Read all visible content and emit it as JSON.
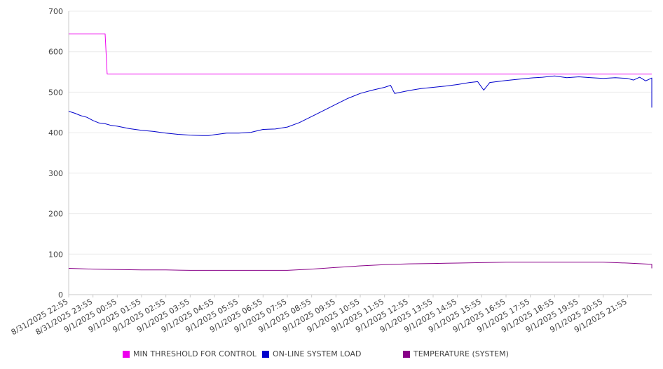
{
  "chart_data": {
    "type": "line",
    "title": "",
    "xlabel": "",
    "ylabel": "",
    "ylim": [
      0,
      700
    ],
    "yticks": [
      0,
      100,
      200,
      300,
      400,
      500,
      600,
      700
    ],
    "grid": "horizontal",
    "legend_position": "bottom",
    "xlim": [
      "8/31/2025 22:55",
      "9/1/2025 22:55"
    ],
    "x_tick_labels": [
      "8/31/2025 22:55",
      "8/31/2025 23:55",
      "9/1/2025 00:55",
      "9/1/2025 01:55",
      "9/1/2025 02:55",
      "9/1/2025 03:55",
      "9/1/2025 04:55",
      "9/1/2025 05:55",
      "9/1/2025 06:55",
      "9/1/2025 07:55",
      "9/1/2025 08:55",
      "9/1/2025 09:55",
      "9/1/2025 10:55",
      "9/1/2025 11:55",
      "9/1/2025 12:55",
      "9/1/2025 13:55",
      "9/1/2025 14:55",
      "9/1/2025 15:55",
      "9/1/2025 16:55",
      "9/1/2025 17:55",
      "9/1/2025 18:55",
      "9/1/2025 19:55",
      "9/1/2025 20:55",
      "9/1/2025 21:55"
    ],
    "series": [
      {
        "name": "MIN THRESHOLD FOR CONTROL",
        "color": "#ee00ee",
        "points": [
          [
            "8/31/2025 22:55",
            644
          ],
          [
            "9/1/2025 00:25",
            644
          ],
          [
            "9/1/2025 00:30",
            545
          ],
          [
            "9/1/2025 22:55",
            545
          ]
        ]
      },
      {
        "name": "ON-LINE SYSTEM LOAD",
        "color": "#0000cc",
        "points": [
          [
            "8/31/2025 22:55",
            453
          ],
          [
            "8/31/2025 23:10",
            448
          ],
          [
            "8/31/2025 23:25",
            442
          ],
          [
            "8/31/2025 23:40",
            438
          ],
          [
            "8/31/2025 23:55",
            430
          ],
          [
            "9/1/2025 00:10",
            424
          ],
          [
            "9/1/2025 00:25",
            422
          ],
          [
            "9/1/2025 00:40",
            418
          ],
          [
            "9/1/2025 00:55",
            416
          ],
          [
            "9/1/2025 01:25",
            410
          ],
          [
            "9/1/2025 01:55",
            406
          ],
          [
            "9/1/2025 02:25",
            403
          ],
          [
            "9/1/2025 02:55",
            399
          ],
          [
            "9/1/2025 03:25",
            396
          ],
          [
            "9/1/2025 03:55",
            394
          ],
          [
            "9/1/2025 04:25",
            393
          ],
          [
            "9/1/2025 04:40",
            393
          ],
          [
            "9/1/2025 04:55",
            395
          ],
          [
            "9/1/2025 05:25",
            399
          ],
          [
            "9/1/2025 05:55",
            399
          ],
          [
            "9/1/2025 06:25",
            401
          ],
          [
            "9/1/2025 06:55",
            408
          ],
          [
            "9/1/2025 07:25",
            409
          ],
          [
            "9/1/2025 07:55",
            414
          ],
          [
            "9/1/2025 08:25",
            425
          ],
          [
            "9/1/2025 08:55",
            440
          ],
          [
            "9/1/2025 09:25",
            455
          ],
          [
            "9/1/2025 09:55",
            470
          ],
          [
            "9/1/2025 10:25",
            485
          ],
          [
            "9/1/2025 10:55",
            497
          ],
          [
            "9/1/2025 11:25",
            505
          ],
          [
            "9/1/2025 11:55",
            512
          ],
          [
            "9/1/2025 12:10",
            517
          ],
          [
            "9/1/2025 12:20",
            497
          ],
          [
            "9/1/2025 12:55",
            504
          ],
          [
            "9/1/2025 13:25",
            509
          ],
          [
            "9/1/2025 13:55",
            512
          ],
          [
            "9/1/2025 14:25",
            515
          ],
          [
            "9/1/2025 14:55",
            519
          ],
          [
            "9/1/2025 15:25",
            524
          ],
          [
            "9/1/2025 15:45",
            526
          ],
          [
            "9/1/2025 16:00",
            505
          ],
          [
            "9/1/2025 16:15",
            524
          ],
          [
            "9/1/2025 16:55",
            529
          ],
          [
            "9/1/2025 17:25",
            532
          ],
          [
            "9/1/2025 17:55",
            535
          ],
          [
            "9/1/2025 18:25",
            537
          ],
          [
            "9/1/2025 18:55",
            540
          ],
          [
            "9/1/2025 19:25",
            536
          ],
          [
            "9/1/2025 19:55",
            538
          ],
          [
            "9/1/2025 20:25",
            536
          ],
          [
            "9/1/2025 20:55",
            534
          ],
          [
            "9/1/2025 21:25",
            536
          ],
          [
            "9/1/2025 21:55",
            534
          ],
          [
            "9/1/2025 22:10",
            530
          ],
          [
            "9/1/2025 22:25",
            537
          ],
          [
            "9/1/2025 22:40",
            528
          ],
          [
            "9/1/2025 22:55",
            535
          ],
          [
            "9/1/2025 23:25",
            528
          ],
          [
            "9/1/2025 23:55",
            522
          ],
          [
            "9/2/2025 00:10",
            513
          ],
          [
            "9/2/2025 00:25",
            498
          ],
          [
            "9/2/2025 00:40",
            490
          ],
          [
            "9/2/2025 00:55",
            477
          ],
          [
            "9/2/2025 01:10",
            470
          ],
          [
            "9/2/2025 01:25",
            462
          ]
        ]
      },
      {
        "name": "TEMPERATURE (SYSTEM)",
        "color": "#880088",
        "points": [
          [
            "8/31/2025 22:55",
            65
          ],
          [
            "8/31/2025 23:55",
            63
          ],
          [
            "9/1/2025 00:55",
            62
          ],
          [
            "9/1/2025 01:55",
            61
          ],
          [
            "9/1/2025 02:55",
            61
          ],
          [
            "9/1/2025 03:55",
            60
          ],
          [
            "9/1/2025 04:55",
            60
          ],
          [
            "9/1/2025 05:55",
            60
          ],
          [
            "9/1/2025 06:55",
            60
          ],
          [
            "9/1/2025 07:55",
            60
          ],
          [
            "9/1/2025 08:55",
            63
          ],
          [
            "9/1/2025 09:55",
            67
          ],
          [
            "9/1/2025 10:55",
            71
          ],
          [
            "9/1/2025 11:55",
            74
          ],
          [
            "9/1/2025 12:55",
            76
          ],
          [
            "9/1/2025 13:55",
            77
          ],
          [
            "9/1/2025 14:55",
            78
          ],
          [
            "9/1/2025 15:55",
            79
          ],
          [
            "9/1/2025 16:55",
            80
          ],
          [
            "9/1/2025 17:55",
            80
          ],
          [
            "9/1/2025 18:55",
            80
          ],
          [
            "9/1/2025 19:55",
            80
          ],
          [
            "9/1/2025 20:55",
            80
          ],
          [
            "9/1/2025 21:55",
            78
          ],
          [
            "9/1/2025 22:55",
            75
          ],
          [
            "9/1/2025 23:55",
            71
          ],
          [
            "9/2/2025 00:25",
            69
          ],
          [
            "9/2/2025 00:55",
            67
          ],
          [
            "9/2/2025 01:25",
            65
          ]
        ]
      }
    ]
  }
}
